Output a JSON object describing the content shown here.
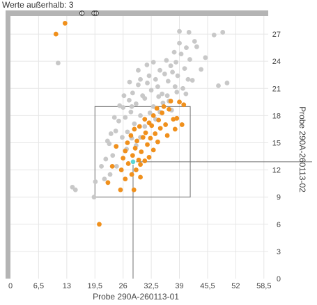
{
  "header": {
    "outliers_label": "Werte außerhalb:",
    "outliers_count": "3"
  },
  "chart_data": {
    "type": "scatter",
    "xlabel": "Probe 290A-260113-01",
    "ylabel": "Probe 290A-260113-02",
    "xlim": [
      0,
      59.5
    ],
    "ylim": [
      0,
      29
    ],
    "x_ticks": [
      "0",
      "6,5",
      "13",
      "19,5",
      "26",
      "32,5",
      "39",
      "45,5",
      "52",
      "58,5"
    ],
    "y_ticks": [
      "0",
      "3",
      "6",
      "9",
      "12",
      "15",
      "18",
      "21",
      "24",
      "27"
    ],
    "grid": true,
    "colors": {
      "reference": "#c8c8c8",
      "sample": "#f0901c",
      "selected": "#5ad6d6",
      "frame": "#b4b4b4",
      "box": "#707070"
    },
    "outlier_markers_top": [
      16.5,
      19.3,
      19.8
    ],
    "selected_point": [
      28.3,
      12.9
    ],
    "box_outer": {
      "x": [
        19.5,
        41.5
      ],
      "y": [
        9.0,
        19.0
      ]
    },
    "crosshair": {
      "x": 28.3,
      "y": 12.9
    },
    "series": [
      {
        "role": "reference",
        "points": [
          [
            11.0,
            23.8
          ],
          [
            14.3,
            10.1
          ],
          [
            15.0,
            9.8
          ],
          [
            19.3,
            9.0
          ],
          [
            19.6,
            10.7
          ],
          [
            21.0,
            12.4
          ],
          [
            22.0,
            13.2
          ],
          [
            21.7,
            11.0
          ],
          [
            23.0,
            11.5
          ],
          [
            22.8,
            14.9
          ],
          [
            23.6,
            13.6
          ],
          [
            24.3,
            16.3
          ],
          [
            25.0,
            17.4
          ],
          [
            24.5,
            12.4
          ],
          [
            25.8,
            15.6
          ],
          [
            26.5,
            17.8
          ],
          [
            27.0,
            16.2
          ],
          [
            27.8,
            18.4
          ],
          [
            26.0,
            18.9
          ],
          [
            27.4,
            19.7
          ],
          [
            28.2,
            20.5
          ],
          [
            29.0,
            19.3
          ],
          [
            29.5,
            21.4
          ],
          [
            30.0,
            18.0
          ],
          [
            30.5,
            20.2
          ],
          [
            28.6,
            17.1
          ],
          [
            31.0,
            19.9
          ],
          [
            31.6,
            21.6
          ],
          [
            32.0,
            22.4
          ],
          [
            32.5,
            20.8
          ],
          [
            33.0,
            19.0
          ],
          [
            33.5,
            22.0
          ],
          [
            34.0,
            21.2
          ],
          [
            34.5,
            23.0
          ],
          [
            35.0,
            20.4
          ],
          [
            35.6,
            22.6
          ],
          [
            36.0,
            24.1
          ],
          [
            36.4,
            21.8
          ],
          [
            37.0,
            23.5
          ],
          [
            37.4,
            22.8
          ],
          [
            37.8,
            25.0
          ],
          [
            38.2,
            23.9
          ],
          [
            38.6,
            22.4
          ],
          [
            39.0,
            26.0
          ],
          [
            39.4,
            24.8
          ],
          [
            39.8,
            21.0
          ],
          [
            40.2,
            23.2
          ],
          [
            40.6,
            25.5
          ],
          [
            41.0,
            22.0
          ],
          [
            41.4,
            24.2
          ],
          [
            39.0,
            27.3
          ],
          [
            41.2,
            27.2
          ],
          [
            42.5,
            26.2
          ],
          [
            43.0,
            25.6
          ],
          [
            44.0,
            23.1
          ],
          [
            45.0,
            24.4
          ],
          [
            47.0,
            26.9
          ],
          [
            48.0,
            21.3
          ],
          [
            49.0,
            27.2
          ],
          [
            50.0,
            21.6
          ],
          [
            30.0,
            15.6
          ],
          [
            31.0,
            16.8
          ],
          [
            29.0,
            14.7
          ],
          [
            33.5,
            17.6
          ],
          [
            34.5,
            18.4
          ],
          [
            35.2,
            19.4
          ],
          [
            36.2,
            20.2
          ],
          [
            37.2,
            18.6
          ],
          [
            38.4,
            20.6
          ],
          [
            29.5,
            23.0
          ],
          [
            31.5,
            23.6
          ],
          [
            33.0,
            23.9
          ],
          [
            27.5,
            21.7
          ],
          [
            26.2,
            20.2
          ],
          [
            25.2,
            19.1
          ],
          [
            24.0,
            17.8
          ],
          [
            23.2,
            16.0
          ],
          [
            22.4,
            15.2
          ],
          [
            28.0,
            19.0
          ],
          [
            30.0,
            22.0
          ],
          [
            32.2,
            18.3
          ],
          [
            34.2,
            20.1
          ],
          [
            36.6,
            19.6
          ],
          [
            38.0,
            21.2
          ],
          [
            26.8,
            14.3
          ],
          [
            28.0,
            15.5
          ],
          [
            40.5,
            20.4
          ],
          [
            42.0,
            21.9
          ]
        ]
      },
      {
        "role": "sample",
        "points": [
          [
            10.5,
            27.0
          ],
          [
            12.6,
            28.2
          ],
          [
            20.5,
            6.0
          ],
          [
            22.5,
            10.6
          ],
          [
            23.5,
            12.4
          ],
          [
            24.4,
            14.6
          ],
          [
            25.4,
            9.8
          ],
          [
            25.6,
            12.0
          ],
          [
            26.0,
            13.3
          ],
          [
            26.5,
            14.1
          ],
          [
            27.0,
            15.0
          ],
          [
            27.2,
            12.7
          ],
          [
            27.8,
            15.8
          ],
          [
            28.2,
            13.6
          ],
          [
            28.6,
            16.5
          ],
          [
            28.8,
            14.4
          ],
          [
            29.2,
            15.2
          ],
          [
            29.6,
            13.1
          ],
          [
            29.8,
            16.8
          ],
          [
            30.2,
            14.0
          ],
          [
            30.6,
            15.6
          ],
          [
            31.0,
            17.6
          ],
          [
            31.2,
            16.1
          ],
          [
            31.6,
            14.8
          ],
          [
            32.0,
            17.2
          ],
          [
            32.3,
            15.5
          ],
          [
            32.6,
            16.9
          ],
          [
            33.0,
            18.0
          ],
          [
            33.4,
            16.0
          ],
          [
            33.8,
            18.8
          ],
          [
            34.2,
            17.5
          ],
          [
            34.6,
            16.6
          ],
          [
            35.0,
            18.3
          ],
          [
            35.4,
            19.0
          ],
          [
            35.8,
            17.0
          ],
          [
            36.2,
            15.8
          ],
          [
            36.6,
            18.7
          ],
          [
            37.0,
            19.6
          ],
          [
            37.6,
            17.6
          ],
          [
            38.0,
            16.5
          ],
          [
            38.4,
            17.7
          ],
          [
            39.0,
            19.5
          ],
          [
            39.6,
            17.0
          ],
          [
            40.0,
            19.2
          ],
          [
            28.0,
            11.5
          ],
          [
            29.0,
            12.0
          ],
          [
            30.0,
            12.6
          ],
          [
            31.0,
            13.0
          ],
          [
            32.0,
            13.4
          ],
          [
            33.0,
            14.2
          ],
          [
            34.0,
            15.1
          ],
          [
            28.5,
            9.8
          ],
          [
            30.0,
            11.2
          ],
          [
            26.5,
            11.0
          ]
        ]
      }
    ]
  }
}
